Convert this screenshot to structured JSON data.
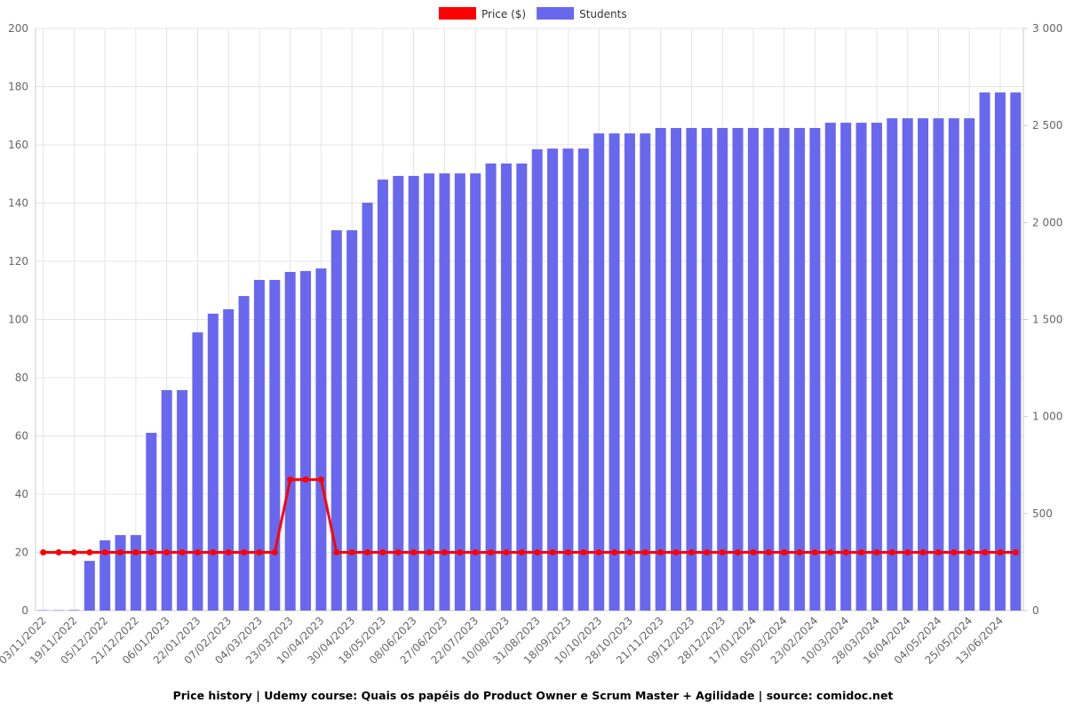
{
  "chart_data": {
    "type": "bar-line",
    "title": "Price history | Udemy course: Quais os papéis do Product Owner e Scrum Master + Agilidade | source: comidoc.net",
    "categories": [
      "03/11/2022",
      null,
      "19/11/2022",
      null,
      "05/12/2022",
      null,
      "21/12/2022",
      null,
      "06/01/2023",
      null,
      "22/01/2023",
      null,
      "07/02/2023",
      null,
      "04/03/2023",
      null,
      "23/03/2023",
      null,
      "10/04/2023",
      null,
      "30/04/2023",
      null,
      "18/05/2023",
      null,
      "08/06/2023",
      null,
      "27/06/2023",
      null,
      "22/07/2023",
      null,
      "10/08/2023",
      null,
      "31/08/2023",
      null,
      "18/09/2023",
      null,
      "10/10/2023",
      null,
      "28/10/2023",
      null,
      "21/11/2023",
      null,
      "09/12/2023",
      null,
      "28/12/2023",
      null,
      "17/01/2024",
      null,
      "05/02/2024",
      null,
      "23/02/2024",
      null,
      "10/03/2024",
      null,
      "28/03/2024",
      null,
      "16/04/2024",
      null,
      "04/05/2024",
      null,
      "25/05/2024",
      null,
      "13/06/2024",
      null
    ],
    "series": [
      {
        "name": "Price ($)",
        "color": "#ff0000",
        "type": "line",
        "values": [
          20,
          20,
          20,
          20,
          20,
          20,
          20,
          20,
          20,
          20,
          20,
          20,
          20,
          20,
          20,
          20,
          45,
          45,
          45,
          20,
          20,
          20,
          20,
          20,
          20,
          20,
          20,
          20,
          20,
          20,
          20,
          20,
          20,
          20,
          20,
          20,
          20,
          20,
          20,
          20,
          20,
          20,
          20,
          20,
          20,
          20,
          20,
          20,
          20,
          20,
          20,
          20,
          20,
          20,
          20,
          20,
          20,
          20,
          20,
          20,
          20,
          20,
          20,
          20
        ]
      },
      {
        "name": "Students",
        "color": "#6868ee",
        "type": "bar",
        "axis": "y2",
        "values": [
          2,
          2,
          3,
          256,
          362,
          389,
          389,
          916,
          1136,
          1136,
          1434,
          1530,
          1553,
          1621,
          1704,
          1704,
          1745,
          1750,
          1763,
          1960,
          1960,
          2102,
          2221,
          2240,
          2240,
          2253,
          2253,
          2253,
          2253,
          2304,
          2304,
          2304,
          2377,
          2381,
          2381,
          2381,
          2459,
          2459,
          2459,
          2459,
          2487,
          2487,
          2487,
          2487,
          2487,
          2487,
          2487,
          2487,
          2487,
          2487,
          2487,
          2514,
          2514,
          2514,
          2514,
          2537,
          2537,
          2537,
          2537,
          2537,
          2537,
          2670,
          2670,
          2670
        ]
      }
    ],
    "ylim": [
      0,
      200
    ],
    "yticks": [
      0,
      20,
      40,
      60,
      80,
      100,
      120,
      140,
      160,
      180,
      200
    ],
    "y2lim": [
      0,
      3000
    ],
    "y2ticks": [
      0,
      500,
      {
        "value": 1000,
        "label": "1 000"
      },
      {
        "value": 1500,
        "label": "1 500"
      },
      {
        "value": 2000,
        "label": "2 000"
      },
      {
        "value": 2500,
        "label": "2 500"
      },
      {
        "value": 3000,
        "label": "3 000"
      }
    ],
    "grid": true,
    "legend": "top"
  }
}
